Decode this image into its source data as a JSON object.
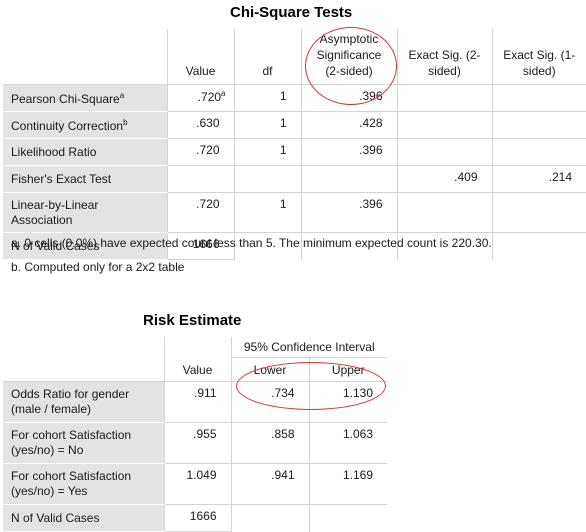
{
  "chi_square": {
    "title": "Chi-Square Tests",
    "columns": [
      "Value",
      "df",
      "Asymptotic Significance (2-sided)",
      "Exact Sig. (2-sided)",
      "Exact Sig. (1-sided)"
    ],
    "rows": [
      {
        "label": "Pearson Chi-Square",
        "sup": "a",
        "value": ".720",
        "df": "1",
        "asymp": ".396",
        "exact2": "",
        "exact1": ""
      },
      {
        "label": "Continuity Correction",
        "sup": "b",
        "value": ".630",
        "df": "1",
        "asymp": ".428",
        "exact2": "",
        "exact1": ""
      },
      {
        "label": "Likelihood Ratio",
        "value": ".720",
        "df": "1",
        "asymp": ".396",
        "exact2": "",
        "exact1": ""
      },
      {
        "label": "Fisher's Exact Test",
        "value": "",
        "df": "",
        "asymp": "",
        "exact2": ".409",
        "exact1": ".214"
      },
      {
        "label": "Linear-by-Linear Association",
        "value": ".720",
        "df": "1",
        "asymp": ".396",
        "exact2": "",
        "exact1": ""
      },
      {
        "label": "N of Valid Cases",
        "value": "1666",
        "df": "",
        "asymp": "",
        "exact2": "",
        "exact1": ""
      }
    ],
    "footnotes": [
      "a. 0 cells (0.0%) have expected count less than 5. The minimum expected count is 220.30.",
      "b. Computed only for a 2x2 table"
    ]
  },
  "risk_estimate": {
    "title": "Risk Estimate",
    "group_header": "95% Confidence Interval",
    "columns": [
      "Value",
      "Lower",
      "Upper"
    ],
    "rows": [
      {
        "label": "Odds Ratio for gender (male / female)",
        "value": ".911",
        "lower": ".734",
        "upper": "1.130"
      },
      {
        "label": "For cohort Satisfaction (yes/no) = No",
        "value": ".955",
        "lower": ".858",
        "upper": "1.063"
      },
      {
        "label": "For cohort Satisfaction (yes/no) = Yes",
        "value": "1.049",
        "lower": ".941",
        "upper": "1.169"
      },
      {
        "label": "N of Valid Cases",
        "value": "1666",
        "lower": "",
        "upper": ""
      }
    ]
  },
  "annotation_color": "#d6332f"
}
